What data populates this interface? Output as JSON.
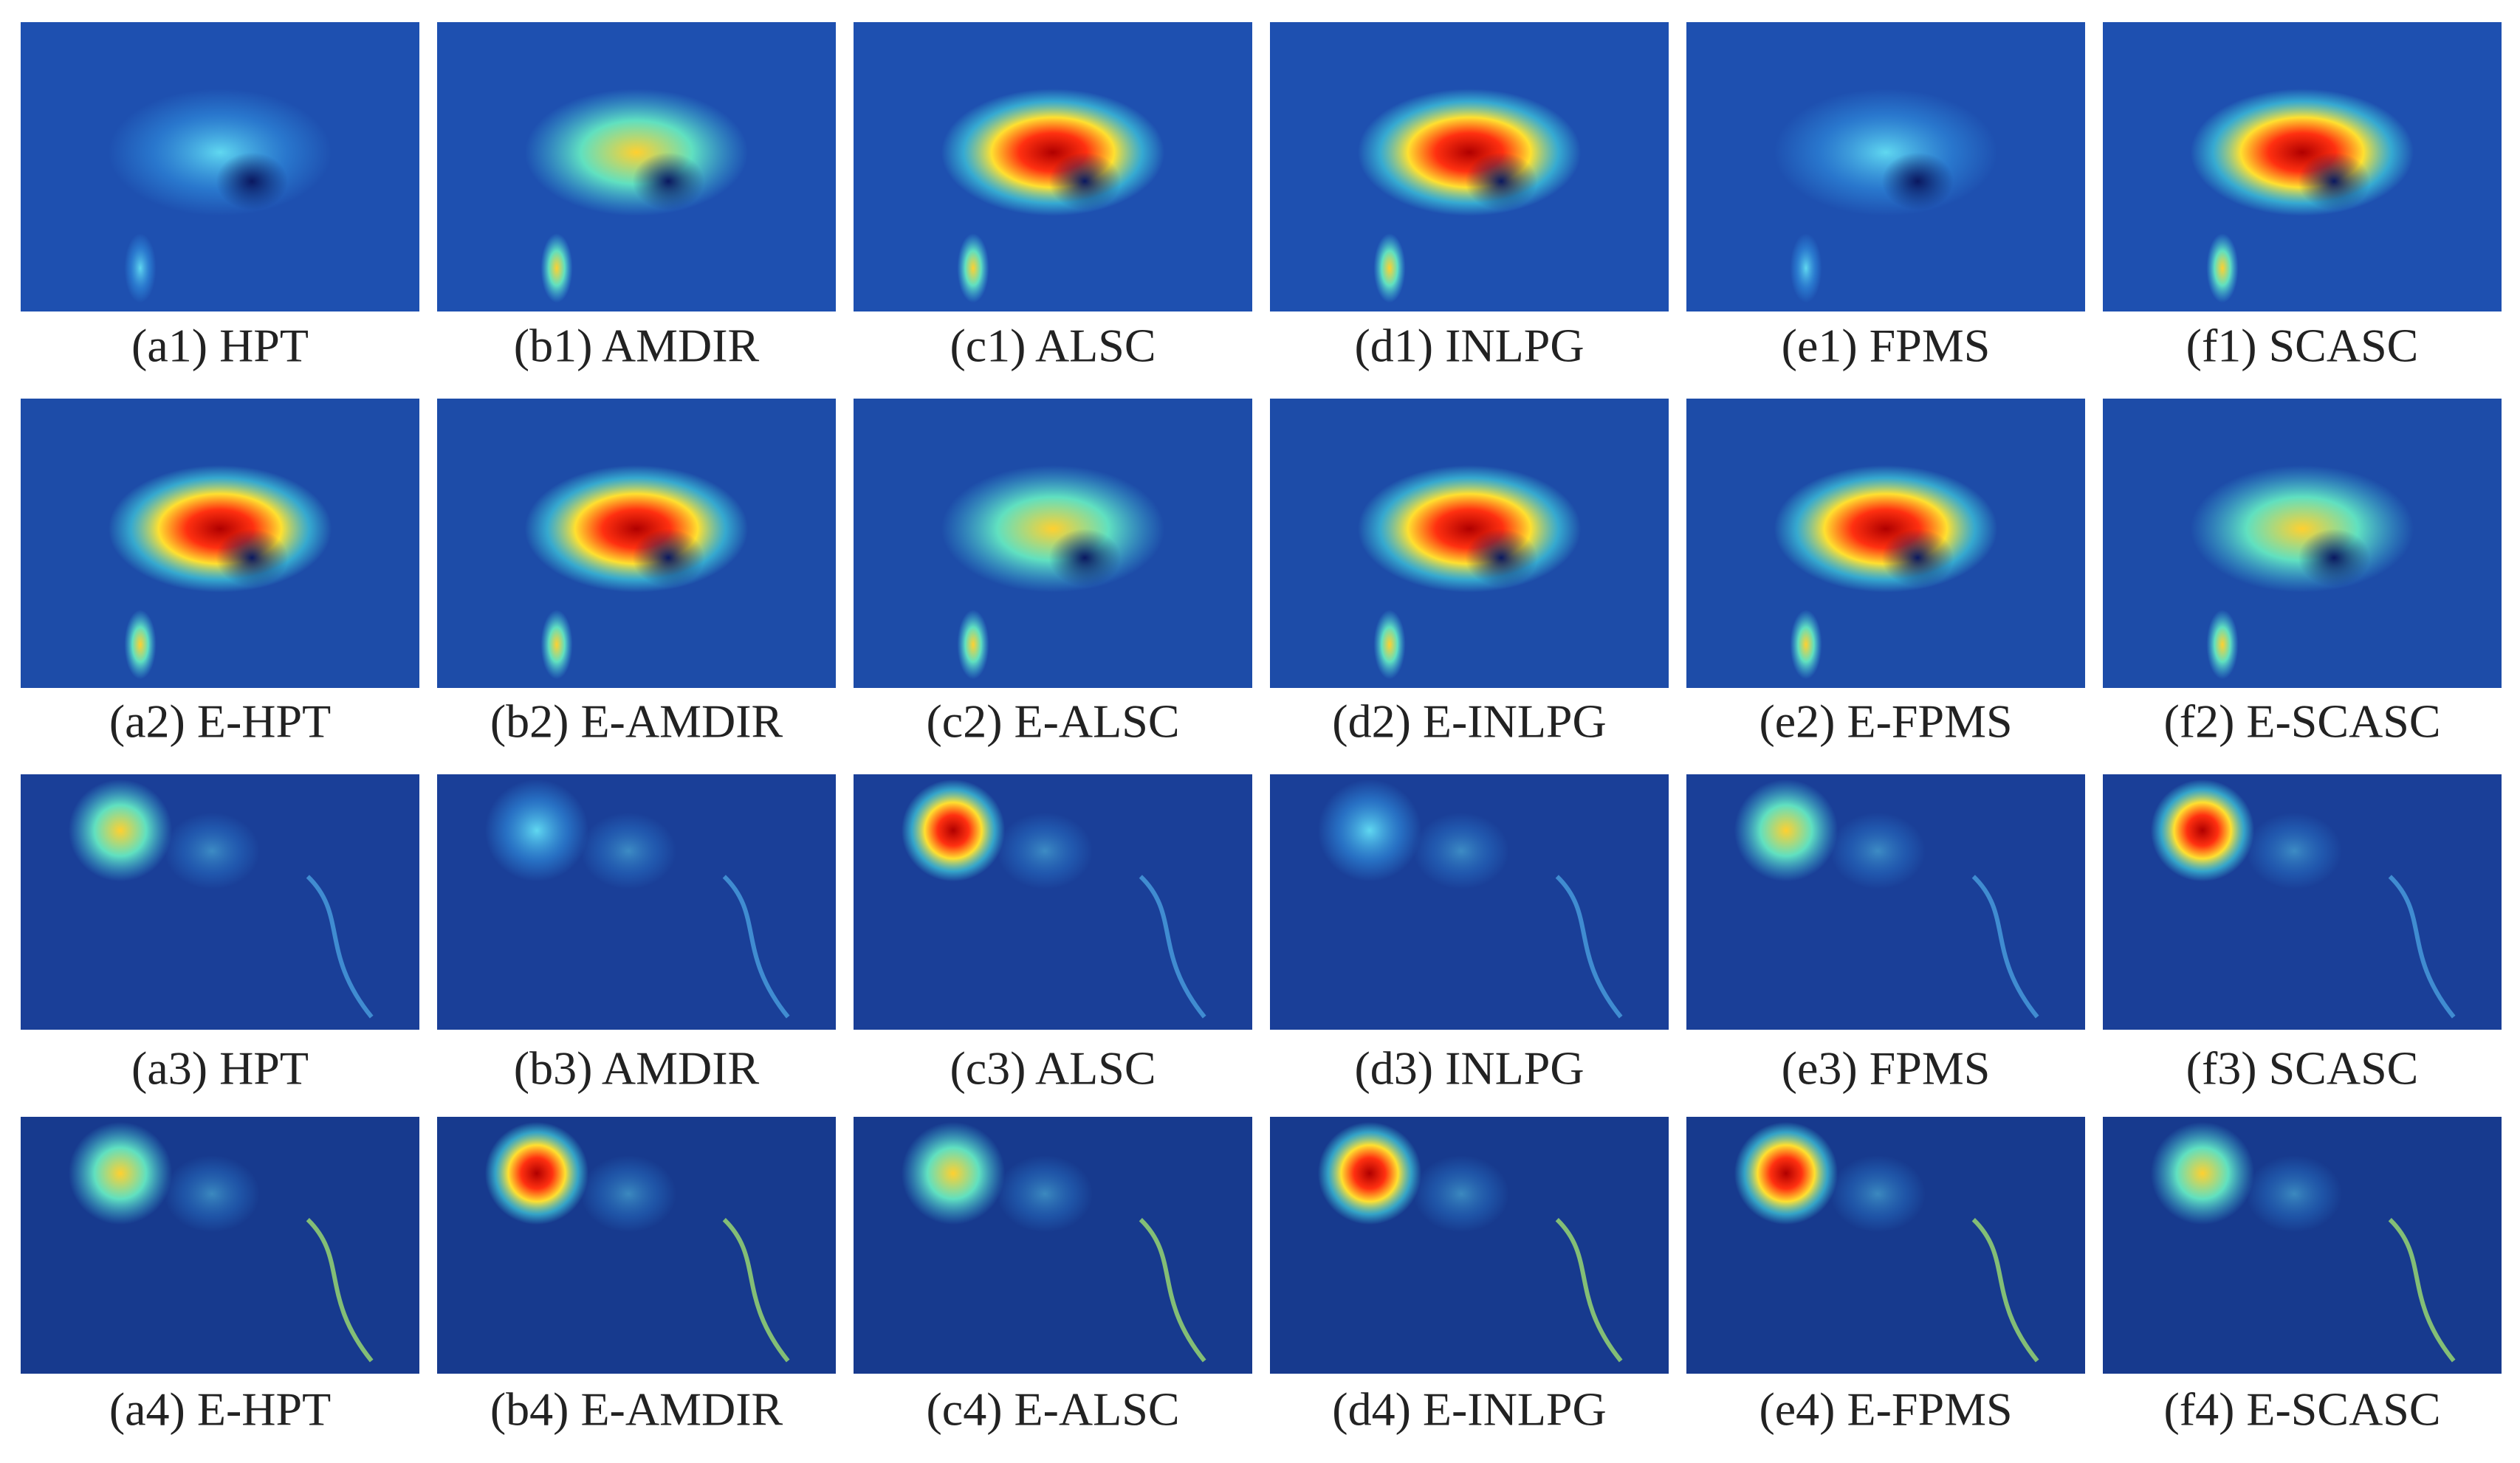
{
  "rows": [
    [
      "(a1) HPT",
      "(b1) AMDIR",
      "(c1) ALSC",
      "(d1) INLPG",
      "(e1) FPMS",
      "(f1) SCASC"
    ],
    [
      "(a2) E-HPT",
      "(b2) E-AMDIR",
      "(c2) E-ALSC",
      "(d2) E-INLPG",
      "(e2) E-FPMS",
      "(f2) E-SCASC"
    ],
    [
      "(a3) HPT",
      "(b3) AMDIR",
      "(c3) ALSC",
      "(d3) INLPG",
      "(e3) FPMS",
      "(f3) SCASC"
    ],
    [
      "(a4) E-HPT",
      "(b4) E-AMDIR",
      "(c4) E-ALSC",
      "(d4) E-INLPG",
      "(e4) E-FPMS",
      "(f4) E-SCASC"
    ]
  ]
}
